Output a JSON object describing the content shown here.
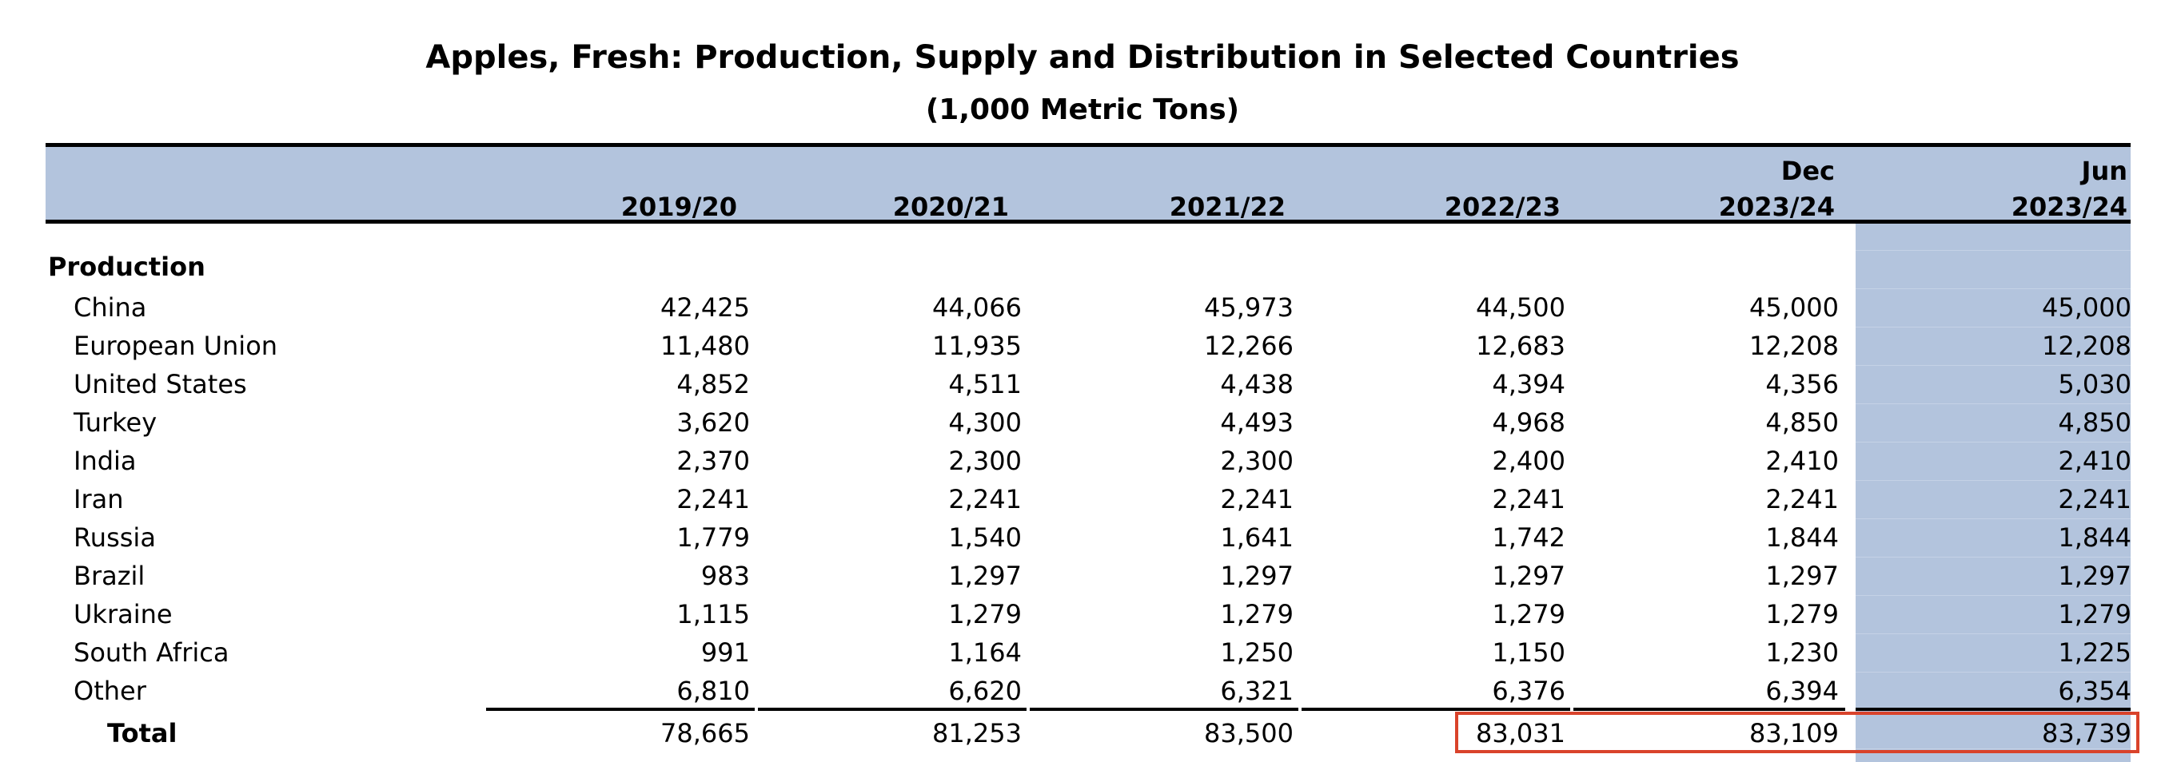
{
  "title": "Apples, Fresh:  Production, Supply and Distribution in Selected Countries",
  "subtitle": "(1,000 Metric Tons)",
  "columns": [
    {
      "line1": "",
      "line2": "2019/20"
    },
    {
      "line1": "",
      "line2": "2020/21"
    },
    {
      "line1": "",
      "line2": "2021/22"
    },
    {
      "line1": "",
      "line2": "2022/23"
    },
    {
      "line1": "Dec",
      "line2": "2023/24"
    },
    {
      "line1": "Jun",
      "line2": "2023/24"
    }
  ],
  "section_label": "Production",
  "rows": [
    {
      "name": "China",
      "values": [
        "42,425",
        "44,066",
        "45,973",
        "44,500",
        "45,000",
        "45,000"
      ]
    },
    {
      "name": "European Union",
      "values": [
        "11,480",
        "11,935",
        "12,266",
        "12,683",
        "12,208",
        "12,208"
      ]
    },
    {
      "name": "United States",
      "values": [
        "4,852",
        "4,511",
        "4,438",
        "4,394",
        "4,356",
        "5,030"
      ]
    },
    {
      "name": "Turkey",
      "values": [
        "3,620",
        "4,300",
        "4,493",
        "4,968",
        "4,850",
        "4,850"
      ]
    },
    {
      "name": "India",
      "values": [
        "2,370",
        "2,300",
        "2,300",
        "2,400",
        "2,410",
        "2,410"
      ]
    },
    {
      "name": "Iran",
      "values": [
        "2,241",
        "2,241",
        "2,241",
        "2,241",
        "2,241",
        "2,241"
      ]
    },
    {
      "name": "Russia",
      "values": [
        "1,779",
        "1,540",
        "1,641",
        "1,742",
        "1,844",
        "1,844"
      ]
    },
    {
      "name": "Brazil",
      "values": [
        "983",
        "1,297",
        "1,297",
        "1,297",
        "1,297",
        "1,297"
      ]
    },
    {
      "name": "Ukraine",
      "values": [
        "1,115",
        "1,279",
        "1,279",
        "1,279",
        "1,279",
        "1,279"
      ]
    },
    {
      "name": "South Africa",
      "values": [
        "991",
        "1,164",
        "1,250",
        "1,150",
        "1,230",
        "1,225"
      ]
    },
    {
      "name": "Other",
      "values": [
        "6,810",
        "6,620",
        "6,321",
        "6,376",
        "6,394",
        "6,354"
      ]
    }
  ],
  "total": {
    "name": "Total",
    "values": [
      "78,665",
      "81,253",
      "83,500",
      "83,031",
      "83,109",
      "83,739"
    ]
  },
  "colors": {
    "header_band": "#b3c4dd",
    "highlight_border": "#d9432b"
  }
}
